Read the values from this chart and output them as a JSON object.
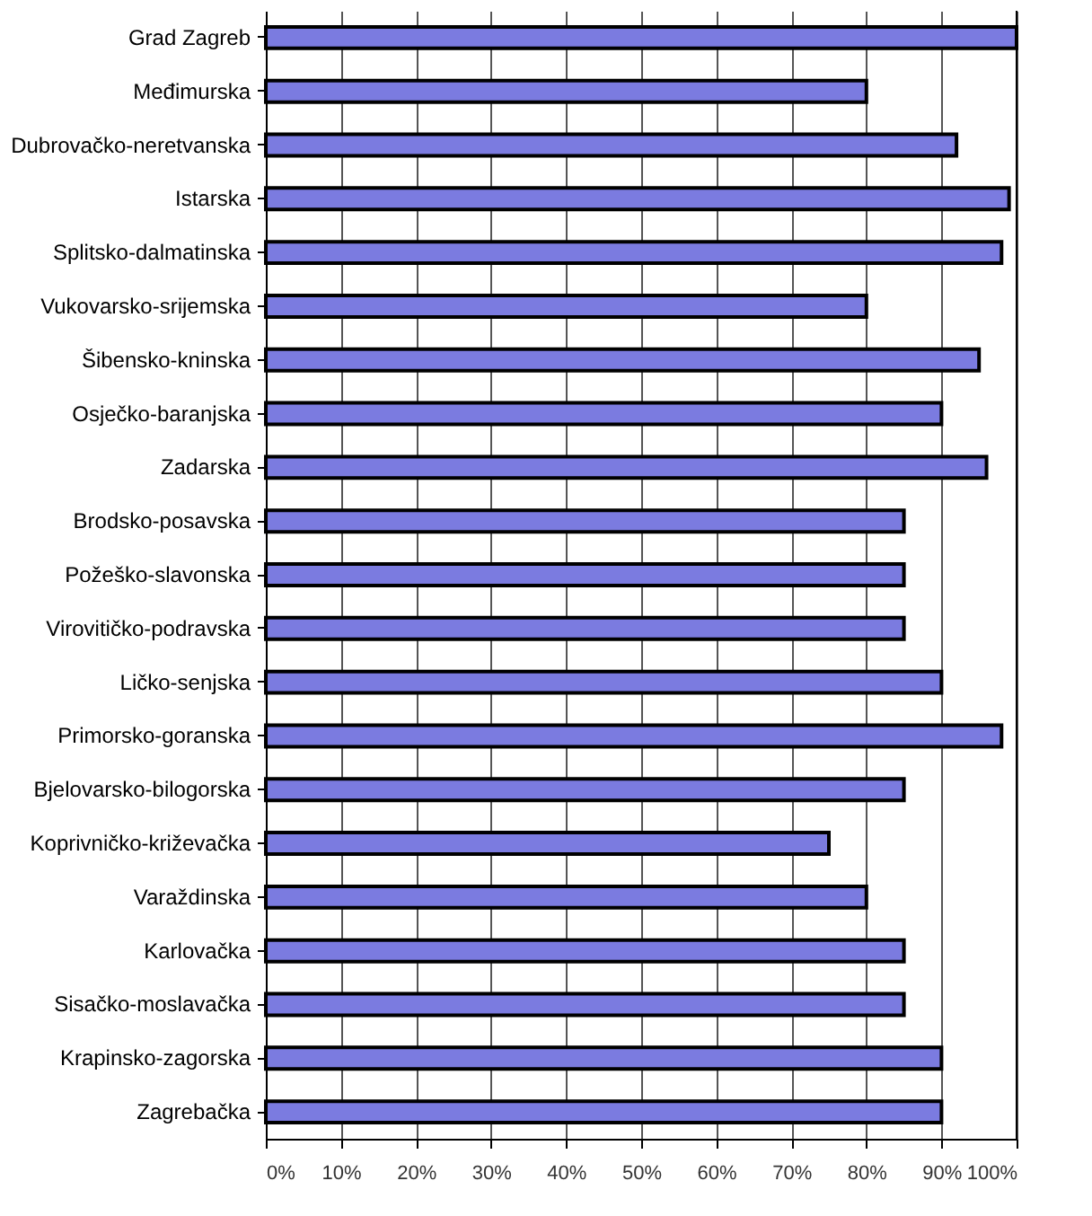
{
  "chart_data": {
    "type": "bar",
    "orientation": "horizontal",
    "categories": [
      "Grad Zagreb",
      "Međimurska",
      "Dubrovačko-neretvanska",
      "Istarska",
      "Splitsko-dalmatinska",
      "Vukovarsko-srijemska",
      "Šibensko-kninska",
      "Osječko-baranjska",
      "Zadarska",
      "Brodsko-posavska",
      "Požeško-slavonska",
      "Virovitičko-podravska",
      "Ličko-senjska",
      "Primorsko-goranska",
      "Bjelovarsko-bilogorska",
      "Koprivničko-križevačka",
      "Varaždinska",
      "Karlovačka",
      "Sisačko-moslavačka",
      "Krapinsko-zagorska",
      "Zagrebačka"
    ],
    "values": [
      100,
      80,
      92,
      99,
      98,
      80,
      95,
      90,
      96,
      85,
      85,
      85,
      90,
      98,
      85,
      75,
      80,
      85,
      85,
      90,
      90
    ],
    "color": "#7b7be0",
    "xlim": [
      0,
      100
    ],
    "xticks": [
      {
        "value": 0,
        "label": "0%"
      },
      {
        "value": 10,
        "label": "10%"
      },
      {
        "value": 20,
        "label": "20%"
      },
      {
        "value": 30,
        "label": "30%"
      },
      {
        "value": 40,
        "label": "40%"
      },
      {
        "value": 50,
        "label": "50%"
      },
      {
        "value": 60,
        "label": "60%"
      },
      {
        "value": 70,
        "label": "70%"
      },
      {
        "value": 80,
        "label": "80%"
      },
      {
        "value": 90,
        "label": "90%"
      },
      {
        "value": 100,
        "label": "100%"
      }
    ],
    "grid": "x"
  }
}
